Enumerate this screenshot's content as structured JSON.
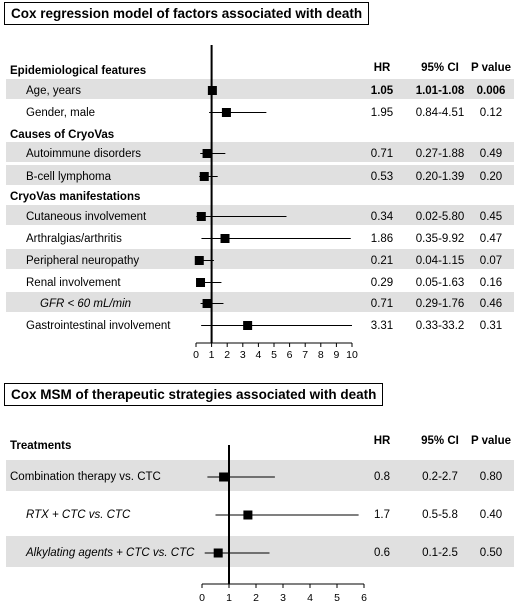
{
  "chart_data": [
    {
      "type": "forest",
      "title": "Cox regression model of factors associated with death",
      "columns": {
        "hr": "HR",
        "ci": "95% CI",
        "p": "P value"
      },
      "xlim": [
        0,
        10
      ],
      "xticks": [
        "0",
        "1",
        "2",
        "3",
        "4",
        "5",
        "6",
        "7",
        "8",
        "9",
        "10"
      ],
      "reference_line": 1,
      "rows": [
        {
          "label": "Epidemiological features",
          "kind": "section"
        },
        {
          "label": "Age, years",
          "kind": "item",
          "shaded": true,
          "bold_values": true,
          "hr": 1.05,
          "lo": 1.01,
          "hi": 1.08,
          "hr_text": "1.05",
          "ci_text": "1.01-1.08",
          "p_text": "0.006"
        },
        {
          "label": "Gender, male",
          "kind": "item",
          "shaded": false,
          "hr": 1.95,
          "lo": 0.84,
          "hi": 4.51,
          "hr_text": "1.95",
          "ci_text": "0.84-4.51",
          "p_text": "0.12"
        },
        {
          "label": "Causes of CryoVas",
          "kind": "section"
        },
        {
          "label": "Autoimmune disorders",
          "kind": "item",
          "shaded": true,
          "hr": 0.71,
          "lo": 0.27,
          "hi": 1.88,
          "hr_text": "0.71",
          "ci_text": "0.27-1.88",
          "p_text": "0.49"
        },
        {
          "label": "B-cell lymphoma",
          "kind": "item",
          "shaded": true,
          "hr": 0.53,
          "lo": 0.2,
          "hi": 1.39,
          "hr_text": "0.53",
          "ci_text": "0.20-1.39",
          "p_text": "0.20"
        },
        {
          "label": "CryoVas manifestations",
          "kind": "section"
        },
        {
          "label": "Cutaneous involvement",
          "kind": "item",
          "shaded": true,
          "hr": 0.34,
          "lo": 0.02,
          "hi": 5.8,
          "hr_text": "0.34",
          "ci_text": "0.02-5.80",
          "p_text": "0.45"
        },
        {
          "label": "Arthralgias/arthritis",
          "kind": "item",
          "shaded": false,
          "hr": 1.86,
          "lo": 0.35,
          "hi": 9.92,
          "hr_text": "1.86",
          "ci_text": "0.35-9.92",
          "p_text": "0.47"
        },
        {
          "label": "Peripheral neuropathy",
          "kind": "item",
          "shaded": true,
          "hr": 0.21,
          "lo": 0.04,
          "hi": 1.15,
          "hr_text": "0.21",
          "ci_text": "0.04-1.15",
          "p_text": "0.07"
        },
        {
          "label": "Renal involvement",
          "kind": "item",
          "shaded": false,
          "hr": 0.29,
          "lo": 0.05,
          "hi": 1.63,
          "hr_text": "0.29",
          "ci_text": "0.05-1.63",
          "p_text": "0.16"
        },
        {
          "label": "GFR < 60 mL/min",
          "kind": "item",
          "shaded": true,
          "italic": true,
          "indent": true,
          "hr": 0.71,
          "lo": 0.29,
          "hi": 1.76,
          "hr_text": "0.71",
          "ci_text": "0.29-1.76",
          "p_text": "0.46"
        },
        {
          "label": "Gastrointestinal involvement",
          "kind": "item",
          "shaded": false,
          "hr": 3.31,
          "lo": 0.33,
          "hi": 10.0,
          "hr_text": "3.31",
          "ci_text": "0.33-33.2",
          "p_text": "0.31"
        }
      ]
    },
    {
      "type": "forest",
      "title": "Cox MSM of therapeutic strategies associated with death",
      "columns": {
        "hr": "HR",
        "ci": "95% CI",
        "p": "P value"
      },
      "xlim": [
        0,
        6
      ],
      "xticks": [
        "0",
        "1",
        "2",
        "3",
        "4",
        "5",
        "6"
      ],
      "reference_line": 1,
      "rows": [
        {
          "label": "Treatments",
          "kind": "section"
        },
        {
          "label": "Combination therapy vs. CTC",
          "kind": "item",
          "shaded": true,
          "hr": 0.8,
          "lo": 0.2,
          "hi": 2.7,
          "hr_text": "0.8",
          "ci_text": "0.2-2.7",
          "p_text": "0.80"
        },
        {
          "label": "RTX + CTC vs. CTC",
          "kind": "item",
          "shaded": false,
          "italic": true,
          "indent": true,
          "hr": 1.7,
          "lo": 0.5,
          "hi": 5.8,
          "hr_text": "1.7",
          "ci_text": "0.5-5.8",
          "p_text": "0.40"
        },
        {
          "label": "Alkylating agents + CTC vs. CTC",
          "kind": "item",
          "shaded": true,
          "italic": true,
          "indent": true,
          "hr": 0.6,
          "lo": 0.1,
          "hi": 2.5,
          "hr_text": "0.6",
          "ci_text": "0.1-2.5",
          "p_text": "0.50"
        }
      ]
    }
  ]
}
